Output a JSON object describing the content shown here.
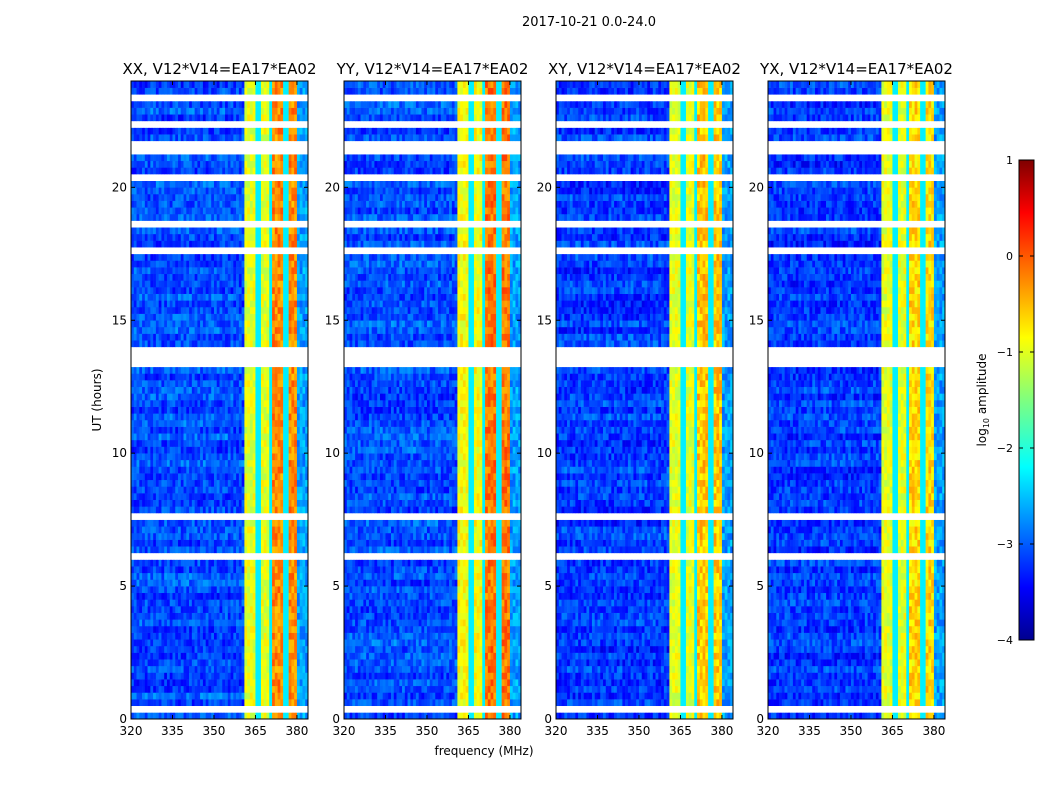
{
  "chart_data": {
    "type": "heatmap",
    "title": "2017-10-21 0.0-24.0",
    "xlabel": "frequency (MHz)",
    "ylabel": "UT (hours)",
    "xlim": [
      320,
      384
    ],
    "ylim": [
      0,
      24
    ],
    "xticks": [
      "320",
      "335",
      "350",
      "365",
      "380"
    ],
    "xtick_values": [
      320,
      335,
      350,
      365,
      380
    ],
    "yticks": [
      "0",
      "5",
      "10",
      "15",
      "20"
    ],
    "ytick_values": [
      0,
      5,
      10,
      15,
      20
    ],
    "colorbar": {
      "label_main": "log",
      "label_sub": "10",
      "label_rest": " amplitude",
      "range": [
        -4,
        1
      ],
      "ticks": [
        "−4",
        "−3",
        "−2",
        "−1",
        "0",
        "1"
      ],
      "tick_values": [
        -4,
        -3,
        -2,
        -1,
        0,
        1
      ],
      "colormap": "jet"
    },
    "panels": [
      {
        "title": "XX, V12*V14=EA17*EA02",
        "background_level": -3.0,
        "band_level": -1.0,
        "hot_level": -0.3
      },
      {
        "title": "YY, V12*V14=EA17*EA02",
        "background_level": -3.0,
        "band_level": -0.9,
        "hot_level": -0.2
      },
      {
        "title": "XY, V12*V14=EA17*EA02",
        "background_level": -3.1,
        "band_level": -1.0,
        "hot_level": -0.6
      },
      {
        "title": "YX, V12*V14=EA17*EA02",
        "background_level": -3.1,
        "band_level": -1.0,
        "hot_level": -0.7
      }
    ],
    "band_mhz": [
      361,
      380
    ],
    "hot_subbands_mhz": [
      [
        371,
        375.5
      ],
      [
        376.5,
        379.5
      ]
    ],
    "band_gaps_mhz": [
      366,
      370.5,
      376
    ],
    "flagged_hours": [
      [
        0.35,
        0.45
      ],
      [
        6.0,
        6.15
      ],
      [
        7.45,
        7.7
      ],
      [
        12.45,
        12.55
      ],
      [
        13.35,
        13.6
      ],
      [
        13.9,
        13.95
      ],
      [
        17.5,
        17.8
      ],
      [
        18.6,
        18.65
      ],
      [
        20.3,
        20.35
      ],
      [
        21.2,
        21.65
      ],
      [
        22.4,
        22.45
      ],
      [
        23.2,
        23.35
      ]
    ]
  }
}
